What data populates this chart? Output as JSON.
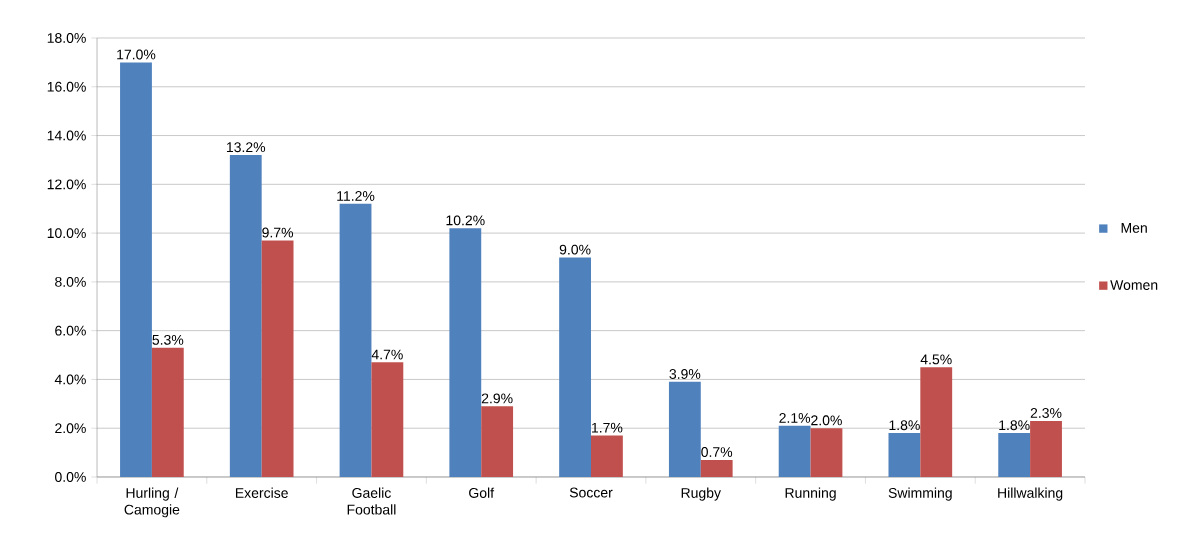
{
  "chart_data": {
    "type": "bar",
    "categories": [
      "Hurling / Camogie",
      "Exercise",
      "Gaelic Football",
      "Golf",
      "Soccer",
      "Rugby",
      "Running",
      "Swimming",
      "Hillwalking"
    ],
    "series": [
      {
        "name": "Men",
        "color": "#4f81bd",
        "values": [
          17.0,
          13.2,
          11.2,
          10.2,
          9.0,
          3.9,
          2.1,
          1.8,
          1.8
        ],
        "value_labels": [
          "17.0%",
          "13.2%",
          "11.2%",
          "10.2%",
          "9.0%",
          "3.9%",
          "2.1%",
          "1.8%",
          "1.8%"
        ]
      },
      {
        "name": "Women",
        "color": "#c0504d",
        "values": [
          5.3,
          9.7,
          4.7,
          2.9,
          1.7,
          0.7,
          2.0,
          4.5,
          2.3
        ],
        "value_labels": [
          "5.3%",
          "9.7%",
          "4.7%",
          "2.9%",
          "1.7%",
          "0.7%",
          "2.0%",
          "4.5%",
          "2.3%"
        ]
      }
    ],
    "ylim": [
      0,
      18
    ],
    "yticks": [
      {
        "value": 0,
        "label": "0.0%"
      },
      {
        "value": 2,
        "label": "2.0%"
      },
      {
        "value": 4,
        "label": "4.0%"
      },
      {
        "value": 6,
        "label": "6.0%"
      },
      {
        "value": 8,
        "label": "8.0%"
      },
      {
        "value": 10,
        "label": "10.0%"
      },
      {
        "value": 12,
        "label": "12.0%"
      },
      {
        "value": 14,
        "label": "14.0%"
      },
      {
        "value": 16,
        "label": "16.0%"
      },
      {
        "value": 18,
        "label": "18.0%"
      }
    ],
    "grid": "y",
    "legend": "right"
  }
}
